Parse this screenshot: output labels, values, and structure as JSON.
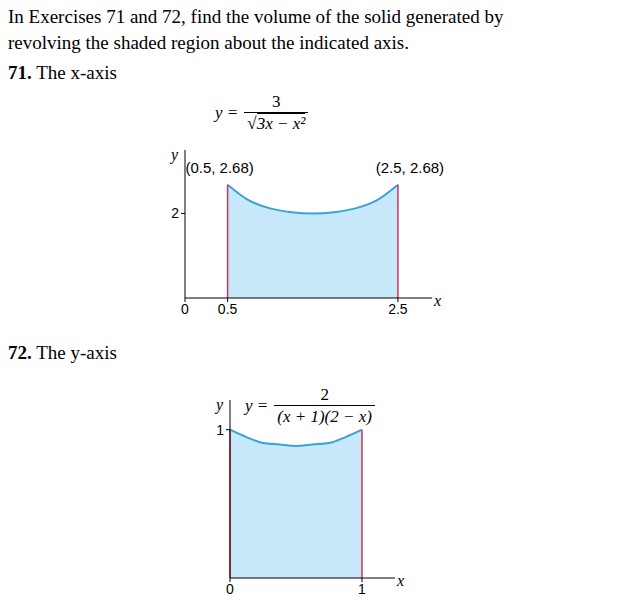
{
  "header": [
    "In Exercises 71 and 72, find the volume of the solid generated by",
    "revolving the shaded region about the indicated axis."
  ],
  "chart_data": [
    {
      "type": "area",
      "title": "71. The x-axis",
      "x_label": "x",
      "y_label": "y",
      "equation": {
        "lhs": "y =",
        "numerator": "3",
        "denominator": "√3x − x²"
      },
      "x": [
        0.5,
        0.75,
        1,
        1.25,
        1.5,
        1.75,
        2,
        2.25,
        2.5
      ],
      "values": [
        2.68,
        2.31,
        2.12,
        2.03,
        2.0,
        2.03,
        2.12,
        2.31,
        2.68
      ],
      "xlim": [
        0,
        2.9
      ],
      "ylim": [
        0,
        3.5
      ],
      "xticks": [
        0,
        0.5,
        2.5
      ],
      "yticks": [
        2
      ],
      "color": "#3aa3d6",
      "annotations": [
        {
          "text": "(0.5, 2.68)",
          "x": 0.5,
          "y": 2.68
        },
        {
          "text": "(2.5, 2.68)",
          "x": 2.5,
          "y": 2.68
        }
      ]
    },
    {
      "type": "area",
      "title": "72. The y-axis",
      "x_label": "x",
      "y_label": "y",
      "equation": {
        "lhs": "y =",
        "numerator": "2",
        "denominator": "(x + 1)(2 − x)"
      },
      "x": [
        0,
        0.125,
        0.25,
        0.375,
        0.5,
        0.625,
        0.75,
        0.875,
        1
      ],
      "values": [
        1.0,
        0.95,
        0.91,
        0.9,
        0.89,
        0.9,
        0.91,
        0.95,
        1.0
      ],
      "xlim": [
        0,
        1.25
      ],
      "ylim": [
        0,
        1.2
      ],
      "xticks": [
        0,
        1
      ],
      "yticks": [
        1
      ],
      "color": "#3aa3d6",
      "annotations": []
    }
  ]
}
